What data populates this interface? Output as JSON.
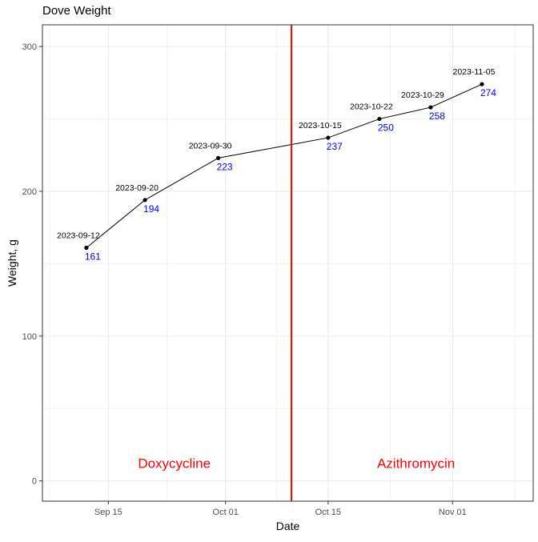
{
  "chart_data": {
    "type": "line",
    "title": "Dove Weight",
    "xlabel": "Date",
    "ylabel": "Weight, g",
    "x_ticks": [
      "Sep 15",
      "Oct 01",
      "Oct 15",
      "Nov 01"
    ],
    "x_tick_dates": [
      "2023-09-15",
      "2023-10-01",
      "2023-10-15",
      "2023-11-01"
    ],
    "xlim": [
      "2023-09-06",
      "2023-11-12"
    ],
    "y_ticks": [
      0,
      100,
      200,
      300
    ],
    "ylim": [
      -14,
      315
    ],
    "grid": true,
    "points": [
      {
        "date": "2023-09-12",
        "weight": 161
      },
      {
        "date": "2023-09-20",
        "weight": 194
      },
      {
        "date": "2023-09-30",
        "weight": 223
      },
      {
        "date": "2023-10-15",
        "weight": 237
      },
      {
        "date": "2023-10-22",
        "weight": 250
      },
      {
        "date": "2023-10-29",
        "weight": 258
      },
      {
        "date": "2023-11-05",
        "weight": 274
      }
    ],
    "annotations": [
      {
        "text": "Doxycycline",
        "date": "2023-09-24",
        "weight": 9,
        "color": "#ff0000"
      },
      {
        "text": "Azithromycin",
        "date": "2023-10-27",
        "weight": 9,
        "color": "#ff0000"
      }
    ],
    "vline": {
      "date": "2023-10-10",
      "color": "#ff0000"
    },
    "colors": {
      "line": "#000000",
      "point": "#000000",
      "value_label": "#0000ff",
      "date_label": "#000000",
      "grid": "#ebebeb",
      "panel_border": "#333333"
    }
  }
}
